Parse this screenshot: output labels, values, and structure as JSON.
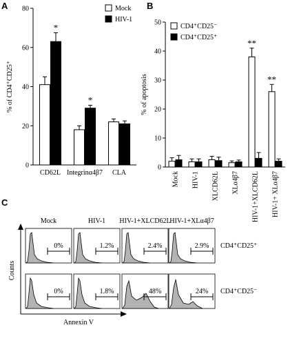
{
  "panel_letters": {
    "A": "A",
    "B": "B",
    "C": "C"
  },
  "chart_data": [
    {
      "panel": "A",
      "type": "bar",
      "ylabel": "% of CD4⁺CD25⁺",
      "ylim": [
        0,
        80
      ],
      "yticks": [
        0,
        20,
        40,
        60,
        80
      ],
      "categories": [
        "CD62L",
        "Integrinα4β7",
        "CLA"
      ],
      "series": [
        {
          "name": "Mock",
          "values": [
            41,
            18,
            22
          ],
          "errors": [
            4,
            2,
            1.5
          ],
          "color": "#ffffff"
        },
        {
          "name": "HIV-1",
          "values": [
            63,
            29,
            21
          ],
          "errors": [
            4.5,
            1.5,
            1.5
          ],
          "color": "#000000"
        }
      ],
      "annotations": [
        {
          "category": "CD62L",
          "series": "HIV-1",
          "text": "*"
        },
        {
          "category": "Integrinα4β7",
          "series": "HIV-1",
          "text": "*"
        }
      ],
      "legend_position": "top-right"
    },
    {
      "panel": "B",
      "type": "bar",
      "ylabel": "% of apoptosis",
      "ylim": [
        0,
        50
      ],
      "yticks": [
        0,
        10,
        20,
        30,
        40,
        50
      ],
      "categories": [
        "Mock",
        "HIV-1",
        "XLCD62L",
        "XLα4β7",
        "HIV-1+XLCD62L",
        "HIV-1+ XLα4β7"
      ],
      "series": [
        {
          "name": "CD4⁺CD25⁻",
          "values": [
            2,
            1.8,
            2.5,
            1.5,
            38,
            26
          ],
          "errors": [
            1.2,
            1,
            1.2,
            0.6,
            3,
            2.5
          ],
          "color": "#ffffff"
        },
        {
          "name": "CD4⁺CD25⁺",
          "values": [
            2.5,
            1.8,
            2.2,
            1.8,
            3,
            2
          ],
          "errors": [
            1.5,
            1,
            1.2,
            0.6,
            2,
            0.8
          ],
          "color": "#000000"
        }
      ],
      "annotations": [
        {
          "category": "HIV-1+XLCD62L",
          "series": "CD4⁺CD25⁻",
          "text": "**"
        },
        {
          "category": "HIV-1+ XLα4β7",
          "series": "CD4⁺CD25⁻",
          "text": "**"
        }
      ],
      "legend_position": "top-left"
    },
    {
      "panel": "C",
      "type": "histogram",
      "xlabel": "Annexin V",
      "ylabel": "Counts",
      "columns": [
        "Mock",
        "HIV-1",
        "HIV-1+XLCD62L",
        "HIV-1+XLα4β7"
      ],
      "rows": [
        "CD4⁺CD25⁺",
        "CD4⁺CD25⁻"
      ],
      "percentages": [
        [
          "0%",
          "1.2%",
          "2.4%",
          "2.9%"
        ],
        [
          "0%",
          "1.8%",
          "48%",
          "24%"
        ]
      ],
      "fill_color": "#b3b3b3"
    }
  ]
}
